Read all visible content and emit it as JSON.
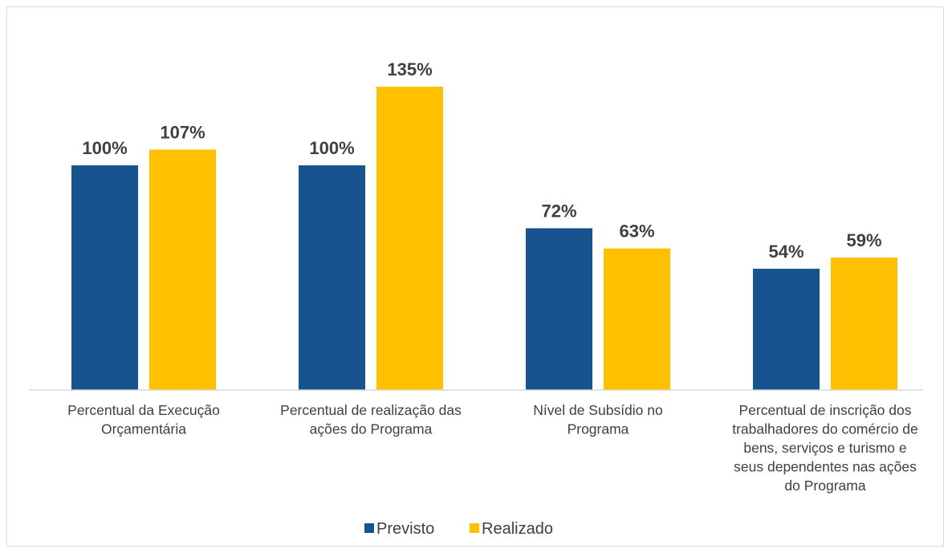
{
  "chart_data": {
    "type": "bar",
    "categories": [
      [
        "Percentual da Execução",
        "Orçamentária"
      ],
      [
        "Percentual de realização das",
        "ações do Programa"
      ],
      [
        "Nível de Subsídio no",
        "Programa"
      ],
      [
        "Percentual de inscrição dos",
        "trabalhadores do comércio de",
        "bens, serviços e turismo e",
        "seus dependentes nas ações",
        "do Programa"
      ]
    ],
    "series": [
      {
        "name": "Previsto",
        "values": [
          100,
          100,
          72,
          54
        ],
        "labels": [
          "100%",
          "100%",
          "72%",
          "54%"
        ],
        "color": "#17538f"
      },
      {
        "name": "Realizado",
        "values": [
          107,
          135,
          63,
          59
        ],
        "labels": [
          "107%",
          "135%",
          "63%",
          "59%"
        ],
        "color": "#ffc000"
      }
    ],
    "ylim": [
      0,
      140
    ],
    "grid": false,
    "legend": "bottom"
  }
}
